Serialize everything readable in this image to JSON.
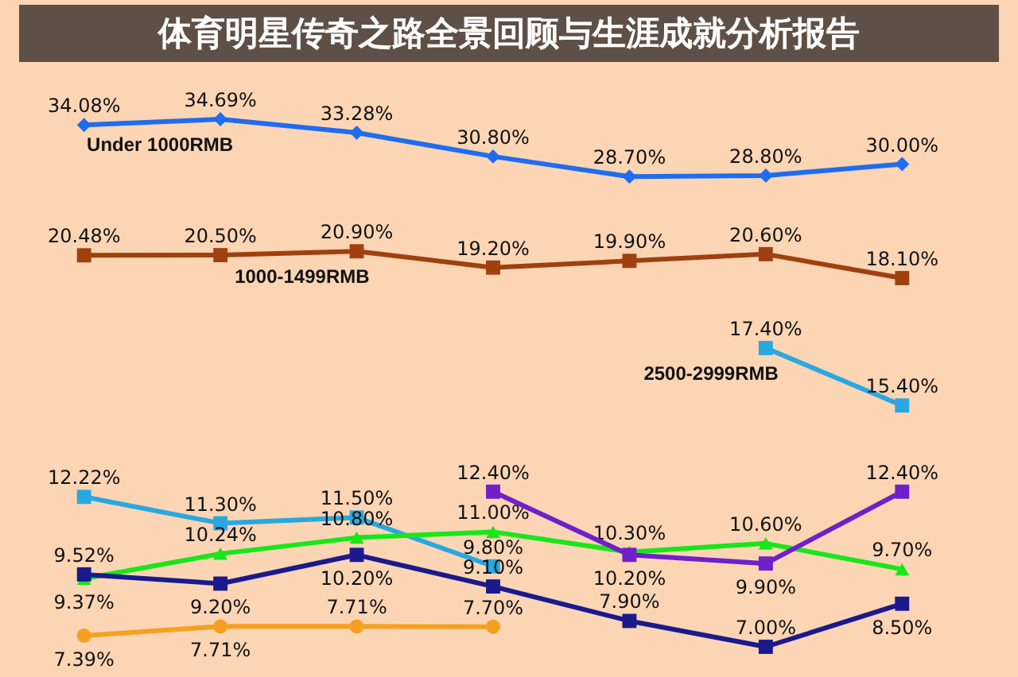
{
  "chart_data": [
    {
      "type": "line",
      "title": "体育明星传奇之路全景回顾与生涯成就分析报告",
      "relative": false,
      "categories": [
        null,
        null,
        null,
        null,
        null,
        null,
        null
      ],
      "series": [
        {
          "name": "Under 1000RMB",
          "color": "#1f6cf0",
          "marker": "diamond",
          "values": [
            34.08,
            34.69,
            33.28,
            30.8,
            28.7,
            28.8,
            30.0
          ],
          "value_labels": [
            "34.08%",
            "34.69%",
            "33.28%",
            "30.80%",
            "28.70%",
            "28.80%",
            "30.00%"
          ]
        },
        {
          "name": "1000-1499RMB",
          "color": "#a0400f",
          "marker": "square",
          "values": [
            20.48,
            20.5,
            20.9,
            19.2,
            19.9,
            20.6,
            18.1
          ],
          "value_labels": [
            "20.48%",
            "20.50%",
            "20.90%",
            "19.20%",
            "19.90%",
            "20.60%",
            "18.10%"
          ]
        }
      ],
      "tick_labels": false
    },
    {
      "type": "line",
      "categories": [
        null,
        null,
        null,
        null,
        null,
        null,
        null
      ],
      "series": [
        {
          "name": "2500-2999RMB",
          "color": "#29a8e0",
          "marker": "square",
          "values": [
            12.22,
            11.3,
            11.5,
            9.8,
            null,
            17.4,
            15.4
          ],
          "value_labels": [
            "12.22%",
            "11.30%",
            "11.50%",
            "9.80%",
            null,
            "17.40%",
            "15.40%"
          ]
        },
        {
          "color": "#19e619",
          "marker": "triangle",
          "values": [
            9.37,
            10.24,
            10.8,
            11.0,
            10.3,
            10.6,
            9.7
          ],
          "value_labels": [
            "9.37%",
            "10.24%",
            "10.80%",
            "11.00%",
            "10.30%",
            "10.60%",
            "9.70%"
          ]
        },
        {
          "color": "#7020c8",
          "marker": "square",
          "values": [
            null,
            null,
            null,
            12.4,
            10.2,
            9.9,
            12.4
          ],
          "value_labels": [
            null,
            null,
            null,
            "12.40%",
            "10.20%",
            "9.90%",
            "12.40%"
          ]
        },
        {
          "color": "#1a1a8c",
          "marker": "square",
          "values": [
            9.52,
            9.2,
            10.2,
            9.1,
            7.9,
            7.0,
            8.5
          ],
          "value_labels": [
            "9.52%",
            "9.20%",
            "10.20%",
            "9.10%",
            "7.90%",
            "7.00%",
            "8.50%"
          ]
        },
        {
          "color": "#f5a020",
          "marker": "circle",
          "values": [
            7.39,
            7.71,
            7.71,
            7.7,
            null,
            null,
            null
          ],
          "value_labels": [
            "7.39%",
            "7.71%",
            "7.71%",
            "7.70%",
            null,
            null,
            null
          ]
        }
      ],
      "tick_labels": false
    }
  ]
}
